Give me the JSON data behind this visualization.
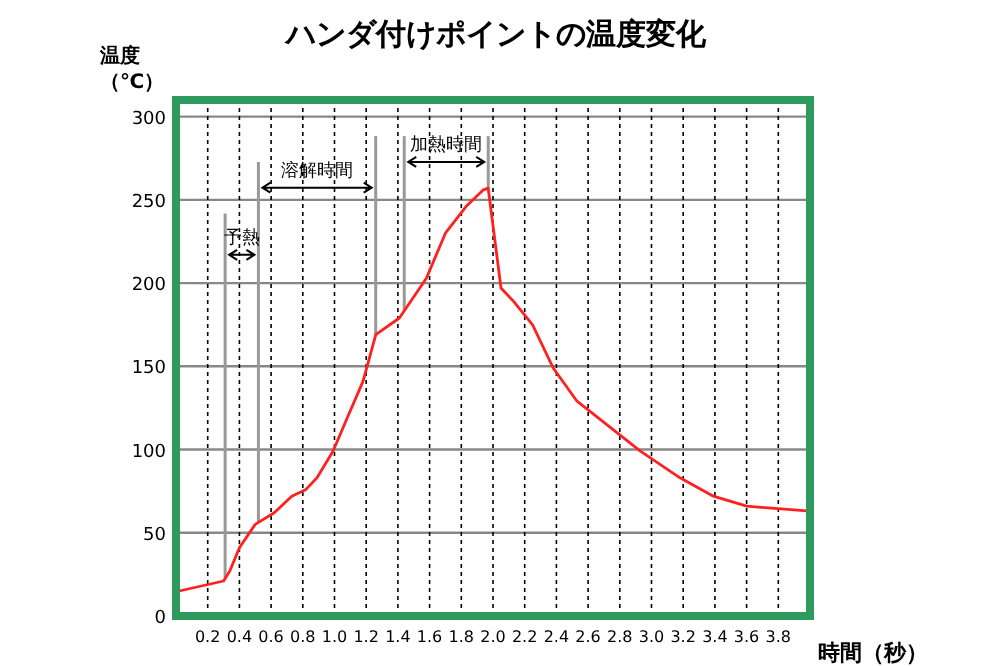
{
  "chart_data": {
    "type": "line",
    "title": "ハンダ付けポイントの温度変化",
    "ylabel": "温度（℃）",
    "xlabel": "時間（秒）",
    "x": [
      0.02,
      0.3,
      0.34,
      0.4,
      0.5,
      0.62,
      0.73,
      0.82,
      0.89,
      0.99,
      1.08,
      1.18,
      1.26,
      1.41,
      1.58,
      1.7,
      1.83,
      1.94,
      1.97,
      2.05,
      2.13,
      2.25,
      2.38,
      2.53,
      2.93,
      3.18,
      3.39,
      3.6,
      4.0
    ],
    "series": [
      {
        "color": "#ff2020",
        "values": [
          15,
          21,
          27,
          41,
          55,
          62,
          72,
          76,
          83,
          99,
          119,
          141,
          169,
          179,
          203,
          230,
          246,
          256,
          257,
          197,
          189,
          175,
          149,
          129,
          99,
          83,
          72,
          66,
          63
        ]
      }
    ],
    "xlim": [
      0,
      4
    ],
    "ylim": [
      0,
      310
    ],
    "xticks": [
      0.2,
      0.4,
      0.6,
      0.8,
      {
        "value": 1.0,
        "label": "1.0"
      },
      1.2,
      1.4,
      1.6,
      1.8,
      {
        "value": 2.0,
        "label": "2.0"
      },
      2.2,
      2.4,
      2.6,
      2.8,
      {
        "value": 3.0,
        "label": "3.0"
      },
      3.2,
      3.4,
      3.6,
      3.8
    ],
    "yticks": [
      0,
      50,
      100,
      150,
      200,
      250,
      300
    ],
    "grid": true,
    "line_style": "solid",
    "marker": "none",
    "ref_lines": [
      {
        "axis": "x",
        "value": 0.31,
        "color": "#999999"
      },
      {
        "axis": "x",
        "value": 0.52,
        "color": "#999999"
      },
      {
        "axis": "x",
        "value": 1.26,
        "color": "#999999"
      },
      {
        "axis": "x",
        "value": 1.44,
        "color": "#999999"
      },
      {
        "axis": "x",
        "value": 1.97,
        "color": "#999999"
      }
    ],
    "annotations": [
      "予熱",
      "溶解時間",
      "加熱時間"
    ]
  }
}
